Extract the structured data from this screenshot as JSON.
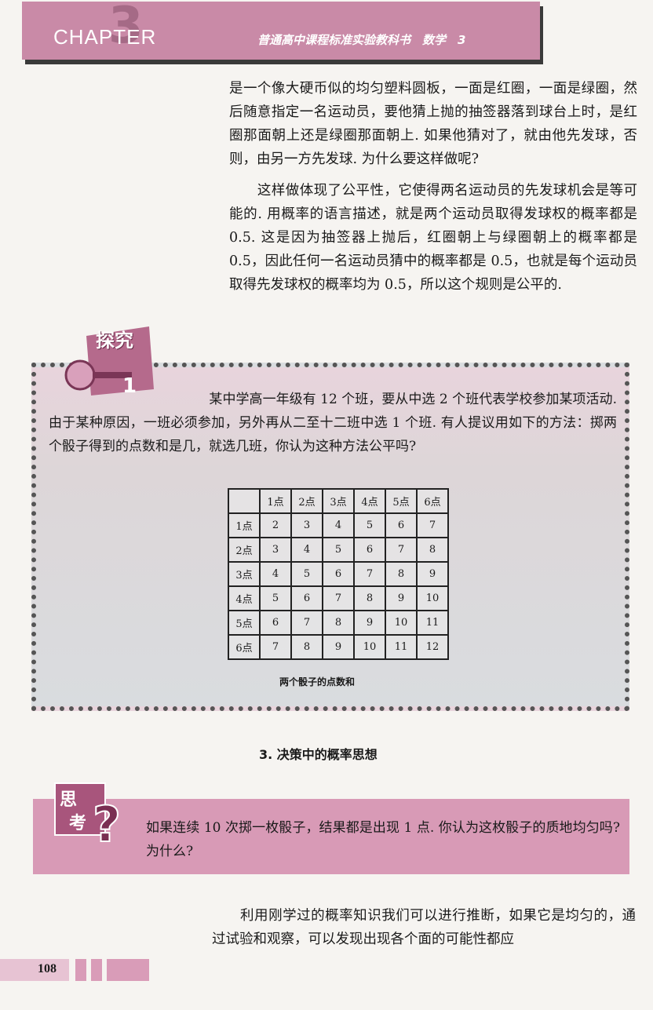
{
  "header": {
    "big_number": "3",
    "chapter_label": "CHAPTER",
    "series_title": "普通高中课程标准实验教科书　数学　3"
  },
  "paragraphs": [
    "是一个像大硬币似的均匀塑料圆板，一面是红圈，一面是绿圈，然后随意指定一名运动员，要他猜上抛的抽签器落到球台上时，是红圈那面朝上还是绿圈那面朝上. 如果他猜对了，就由他先发球，否则，由另一方先发球. 为什么要这样做呢?",
    "　　这样做体现了公平性，它使得两名运动员的先发球机会是等可能的. 用概率的语言描述，就是两个运动员取得发球权的概率都是 0.5. 这是因为抽签器上抛后，红圈朝上与绿圈朝上的概率都是 0.5，因此任何一名运动员猜中的概率都是 0.5，也就是每个运动员取得先发球权的概率均为 0.5，所以这个规则是公平的."
  ],
  "explore": {
    "title": "探究",
    "text": "　　　　　　　　　　　　某中学高一年级有 12 个班，要从中选 2 个班代表学校参加某项活动. 由于某种原因，一班必须参加，另外再从二至十二班中选 1 个班. 有人提议用如下的方法：掷两个骰子得到的点数和是几，就选几班，你认为这种方法公平吗?",
    "table": {
      "header": [
        "",
        "1点",
        "2点",
        "3点",
        "4点",
        "5点",
        "6点"
      ],
      "rows": [
        [
          "1点",
          "2",
          "3",
          "4",
          "5",
          "6",
          "7"
        ],
        [
          "2点",
          "3",
          "4",
          "5",
          "6",
          "7",
          "8"
        ],
        [
          "3点",
          "4",
          "5",
          "6",
          "7",
          "8",
          "9"
        ],
        [
          "4点",
          "5",
          "6",
          "7",
          "8",
          "9",
          "10"
        ],
        [
          "5点",
          "6",
          "7",
          "8",
          "9",
          "10",
          "11"
        ],
        [
          "6点",
          "7",
          "8",
          "9",
          "10",
          "11",
          "12"
        ]
      ],
      "caption": "两个骰子的点数和"
    }
  },
  "section_title": "3. 决策中的概率思想",
  "think": {
    "title": "思考",
    "text": "如果连续 10 次掷一枚骰子，结果都是出现 1 点. 你认为这枚骰子的质地均匀吗? 为什么?"
  },
  "bottom_text": "　　利用刚学过的概率知识我们可以进行推断，如果它是均匀的，通过试验和观察，可以发现出现各个面的可能性都应",
  "page_number": "108",
  "colors": {
    "accent": "#c98aa7",
    "think_bg": "#d89ab6"
  }
}
